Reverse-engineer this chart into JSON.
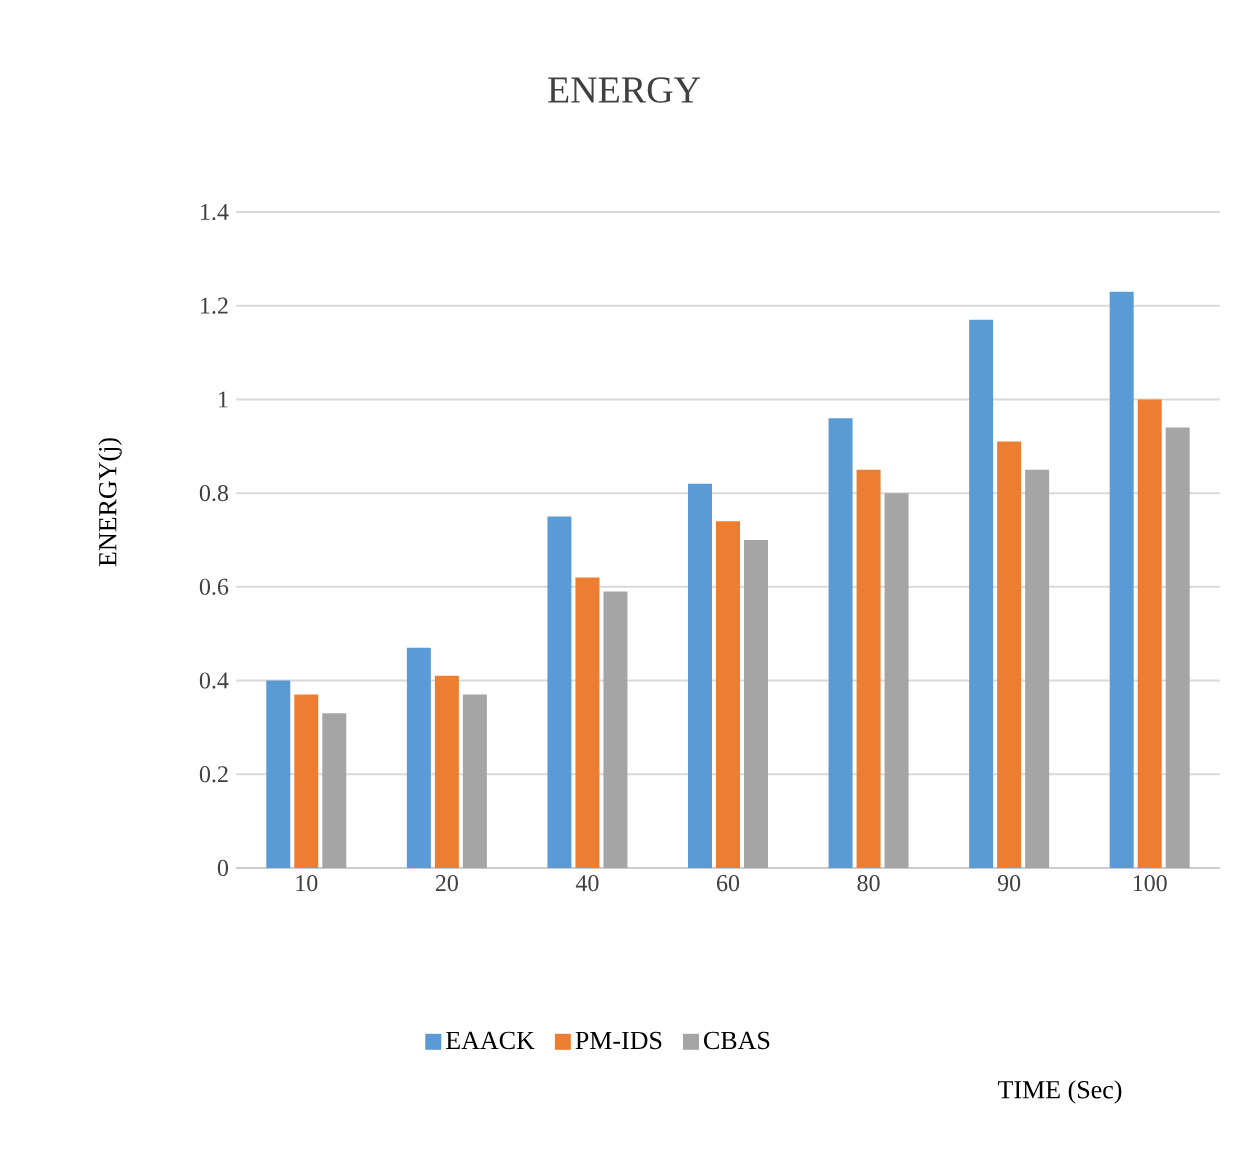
{
  "chart_data": {
    "type": "bar",
    "title": "ENERGY",
    "annotations": [
      "TIME (Sec)"
    ],
    "ylabel": "ENERGY(j)",
    "categories": [
      "10",
      "20",
      "40",
      "60",
      "80",
      "90",
      "100"
    ],
    "series": [
      {
        "name": "EAACK",
        "color": "#5b9bd5",
        "values": [
          0.4,
          0.47,
          0.75,
          0.82,
          0.96,
          1.17,
          1.23
        ]
      },
      {
        "name": "PM-IDS",
        "color": "#ed7d31",
        "values": [
          0.37,
          0.41,
          0.62,
          0.74,
          0.85,
          0.91,
          1.0
        ]
      },
      {
        "name": "CBAS",
        "color": "#a5a5a5",
        "values": [
          0.33,
          0.37,
          0.59,
          0.7,
          0.8,
          0.85,
          0.94
        ]
      }
    ],
    "ylim": [
      0,
      1.4
    ],
    "yticks": [
      0,
      0.2,
      0.4,
      0.6,
      0.8,
      1,
      1.2,
      1.4
    ],
    "grid": "y",
    "legend": "bottom"
  }
}
